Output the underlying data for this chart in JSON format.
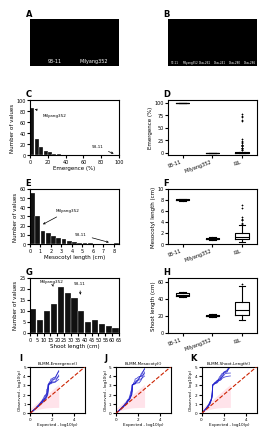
{
  "hist_C": {
    "values": [
      85,
      30,
      15,
      8,
      5,
      3,
      2,
      1,
      0,
      0,
      0,
      0,
      0,
      0,
      0,
      0,
      0,
      0,
      0,
      1
    ],
    "bins": [
      0,
      5,
      10,
      15,
      20,
      25,
      30,
      35,
      40,
      45,
      50,
      55,
      60,
      65,
      70,
      75,
      80,
      85,
      90,
      95
    ],
    "bin_width": 5,
    "xlabel": "Emergence (%)",
    "ylabel": "Number of values",
    "milyang_x": 2.5,
    "milyang_y": 85,
    "milyang_label": "Milyang352",
    "s9311_x": 97,
    "s9311_y": 1,
    "s9311_label": "93-11",
    "ylim": [
      0,
      100
    ],
    "xlim": [
      0,
      100
    ],
    "xticks": [
      0,
      20,
      40,
      60,
      80,
      100
    ],
    "yticks": [
      0,
      20,
      40,
      60,
      80,
      100
    ]
  },
  "box_D": {
    "data_9311_med": 100,
    "data_9311_q1": 100,
    "data_9311_q3": 100,
    "data_milyang_med": 0,
    "data_milyang_q1": 0,
    "data_milyang_q3": 0,
    "labels": [
      "93-11",
      "Milyang352",
      "RIL"
    ],
    "ylabel": "Emergence (%)",
    "ylim": [
      -5,
      105
    ],
    "yticks": [
      0,
      25,
      50,
      75,
      100
    ]
  },
  "hist_E": {
    "values": [
      55,
      30,
      14,
      12,
      9,
      7,
      5,
      3,
      2,
      1,
      1,
      1,
      0,
      0,
      0,
      0,
      1
    ],
    "bins": [
      0.0,
      0.5,
      1.0,
      1.5,
      2.0,
      2.5,
      3.0,
      3.5,
      4.0,
      4.5,
      5.0,
      5.5,
      6.0,
      6.5,
      7.0,
      7.5,
      8.0
    ],
    "bin_width": 0.5,
    "xlabel": "Mesocotyl length (cm)",
    "ylabel": "Number of values",
    "milyang_x": 1.0,
    "milyang_y": 20,
    "milyang_label": "Milyang352",
    "s9311_x": 7.8,
    "s9311_y": 1,
    "s9311_label": "93-11",
    "ylim": [
      0,
      60
    ],
    "xlim": [
      0.0,
      8.5
    ],
    "xticks": [
      0.0,
      1.0,
      2.0,
      3.0,
      4.0,
      5.0,
      6.0,
      7.0,
      8.0
    ],
    "yticks": [
      0,
      10,
      20,
      30,
      40,
      50,
      60
    ]
  },
  "box_F": {
    "labels": [
      "93-11",
      "Milyang352",
      "RIL"
    ],
    "ylabel": "Mesocotyl length (cm)",
    "ylim": [
      0,
      10
    ],
    "yticks": [
      0,
      2,
      4,
      6,
      8,
      10
    ]
  },
  "hist_G": {
    "values": [
      11,
      6,
      10,
      13,
      21,
      18,
      16,
      10,
      5,
      6,
      4,
      3,
      2
    ],
    "bins": [
      0,
      5,
      10,
      15,
      20,
      25,
      30,
      35,
      40,
      45,
      50,
      55,
      60
    ],
    "bin_width": 5,
    "xlabel": "Shoot length (cm)",
    "ylabel": "Number of values",
    "milyang_x": 17,
    "milyang_y": 21,
    "milyang_label": "Milyang352",
    "s9311_x": 37,
    "s9311_y": 16,
    "s9311_label": "93-11",
    "ylim": [
      0,
      25
    ],
    "xlim": [
      0,
      65
    ],
    "xticks": [
      0,
      5,
      10,
      15,
      20,
      25,
      30,
      35,
      40,
      45,
      50,
      55,
      60,
      65
    ],
    "yticks": [
      0,
      5,
      10,
      15,
      20,
      25
    ]
  },
  "box_H": {
    "labels": [
      "93-11",
      "Milyang352",
      "RIL"
    ],
    "ylabel": "Shoot length (cm)",
    "ylim": [
      0,
      65
    ],
    "yticks": [
      0,
      20,
      40,
      60
    ]
  },
  "qq_I_title": "BLMM-Emergence()",
  "qq_J_title": "BLMM-Mesocotyl()",
  "qq_K_title": "BLMM-Shoot-Length()",
  "qq_xlabel": "Expected - log10(p)",
  "qq_ylabel": "Observed - log10(p)",
  "qq_xlim": [
    0,
    5
  ],
  "qq_ylim": [
    0,
    5
  ],
  "bar_color": "#111111",
  "bar_edge_color": "#ffffff",
  "bg_color": "#ffffff",
  "line_color_blue": "#2222cc",
  "line_color_red": "#cc2200",
  "line_color_pink": "#ffbbcc",
  "panel_label_fontsize": 6,
  "axis_label_fontsize": 4,
  "tick_label_fontsize": 3.5,
  "annotation_fontsize": 3
}
